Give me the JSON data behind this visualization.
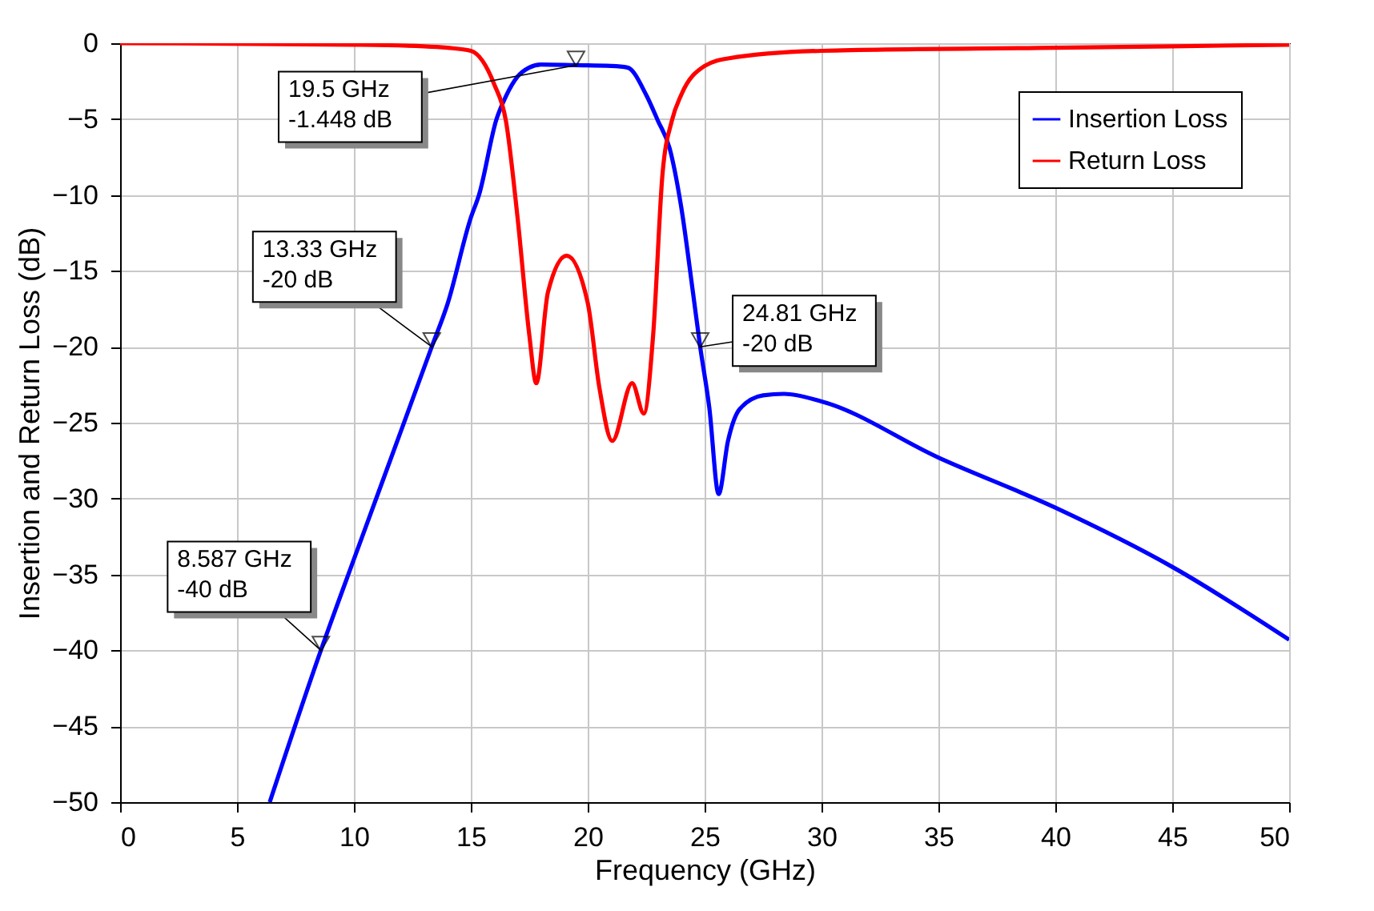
{
  "chart_data": {
    "type": "line",
    "xlabel": "Frequency (GHz)",
    "ylabel": "Insertion and Return Loss (dB)",
    "xlim": [
      0,
      50
    ],
    "ylim": [
      -50,
      0
    ],
    "xticks": [
      0,
      5,
      10,
      15,
      20,
      25,
      30,
      35,
      40,
      45,
      50
    ],
    "yticks": [
      -50,
      -45,
      -40,
      -35,
      -30,
      -25,
      -20,
      -15,
      -10,
      -5,
      0
    ],
    "grid": true,
    "legend": "top right",
    "line_style": "solid",
    "marker": "none",
    "series": [
      {
        "name": "Insertion Loss",
        "color": "#0000ff",
        "x": [
          6.4,
          8.587,
          10,
          11,
          12,
          13.33,
          14,
          15,
          15.35,
          16.1,
          16.5,
          17,
          17.5,
          18,
          19.5,
          21,
          21.7,
          22.5,
          23,
          23.5,
          24,
          24.5,
          24.81,
          25.2,
          25.6,
          26,
          26.5,
          27.5,
          28.4,
          30,
          35,
          40,
          45,
          50
        ],
        "values": [
          -50,
          -40,
          -34,
          -29.8,
          -25.6,
          -20,
          -17.2,
          -11.5,
          -10,
          -5,
          -3.5,
          -2.2,
          -1.6,
          -1.4,
          -1.448,
          -1.5,
          -1.6,
          -3.4,
          -5.1,
          -6.9,
          -10.8,
          -16.4,
          -20,
          -24,
          -29.7,
          -26.2,
          -24.1,
          -23.2,
          -23.1,
          -23.6,
          -27.3,
          -30.6,
          -34.5,
          -39.3
        ]
      },
      {
        "name": "Return Loss",
        "color": "#ff0000",
        "x": [
          0,
          10,
          13,
          14,
          15,
          16,
          16.5,
          17,
          17.5,
          17.8,
          18.3,
          19.1,
          20,
          20.5,
          21.05,
          21.9,
          22.4,
          22.8,
          23.2,
          23.6,
          24,
          25,
          26,
          30,
          40,
          50
        ],
        "values": [
          0,
          -0.1,
          -0.2,
          -0.3,
          -0.5,
          -2.7,
          -5.1,
          -11.5,
          -19.2,
          -22.4,
          -16.4,
          -14,
          -17.1,
          -22.7,
          -26.2,
          -22.4,
          -24.4,
          -19.2,
          -8.6,
          -5.1,
          -3.4,
          -1.5,
          -1,
          -0.5,
          -0.3,
          -0.1
        ]
      }
    ],
    "annotations": [
      {
        "text": "19.5 GHz\n-1.448 dB",
        "x": 19.5,
        "y": -1.448
      },
      {
        "text": "13.33 GHz\n-20 dB",
        "x": 13.33,
        "y": -20
      },
      {
        "text": "24.81 GHz\n-20 dB",
        "x": 24.81,
        "y": -20
      },
      {
        "text": "8.587 GHz\n-40 dB",
        "x": 8.587,
        "y": -40
      }
    ]
  }
}
